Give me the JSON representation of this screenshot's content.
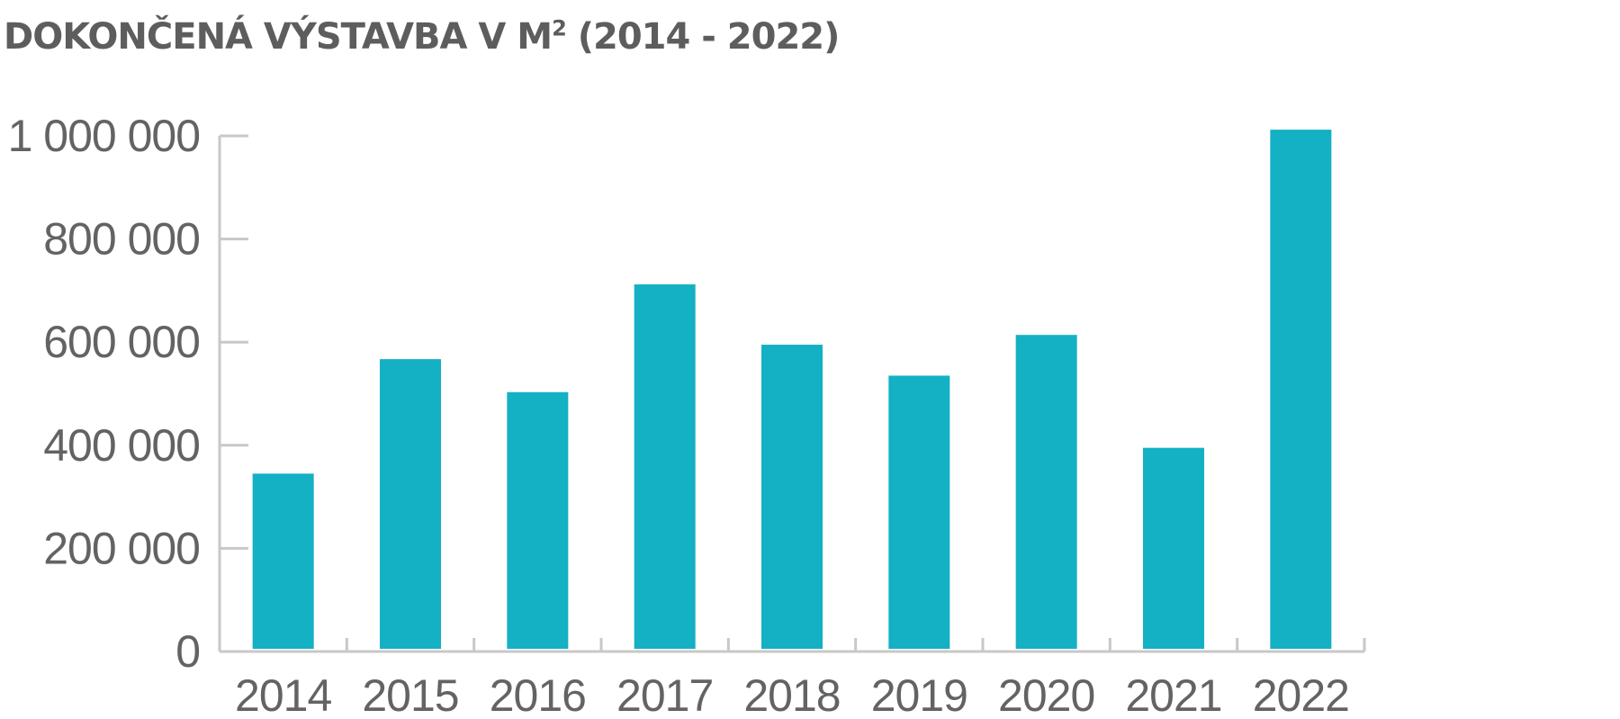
{
  "chart_title": {
    "main": "DOKONČENÁ VÝSTAVBA V M",
    "superscript": "2",
    "suffix": " (2014 - 2022)"
  },
  "chart_data": {
    "type": "bar",
    "title": "DOKONČENÁ VÝSTAVBA V M² (2014 - 2022)",
    "categories": [
      "2014",
      "2015",
      "2016",
      "2017",
      "2018",
      "2019",
      "2020",
      "2021",
      "2022"
    ],
    "values": [
      345000,
      567000,
      503000,
      712000,
      595000,
      535000,
      614000,
      395000,
      1012000
    ],
    "y_ticks": [
      0,
      200000,
      400000,
      600000,
      800000,
      1000000
    ],
    "y_tick_labels": [
      "0",
      "200 000",
      "400 000",
      "600 000",
      "800 000",
      "1 000 000"
    ],
    "ylim": [
      0,
      1000000
    ],
    "xlabel": "",
    "ylabel": "",
    "grid": false,
    "legend": "none",
    "bar_color": "#14b0c4",
    "axis_color": "#c8c8c8"
  }
}
